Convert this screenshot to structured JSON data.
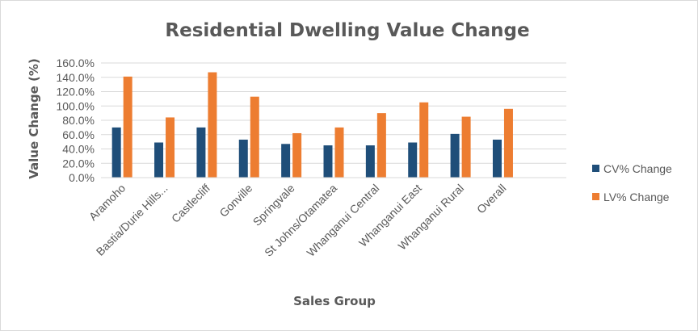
{
  "chart_data": {
    "type": "bar",
    "title": "Residential Dwelling Value Change",
    "xlabel": "Sales Group",
    "ylabel": "Value Change (%)",
    "ylim": [
      0,
      160
    ],
    "yticks": [
      "0.0%",
      "20.0%",
      "40.0%",
      "60.0%",
      "80.0%",
      "100.0%",
      "120.0%",
      "140.0%",
      "160.0%"
    ],
    "categories": [
      "Aramoho",
      "Bastia/Durie Hills...",
      "Castlecliff",
      "Gonville",
      "Springvale",
      "St Johns/Otamatea",
      "Whanganui Central",
      "Whanganui East",
      "Whanganui Rural",
      "Overall"
    ],
    "series": [
      {
        "name": "CV% Change",
        "color": "#1F4E79",
        "values": [
          70,
          49,
          70,
          53,
          47,
          45,
          45,
          49,
          61,
          53
        ]
      },
      {
        "name": "LV% Change",
        "color": "#ED7D31",
        "values": [
          141,
          84,
          147,
          113,
          62,
          70,
          90,
          105,
          85,
          96
        ]
      }
    ],
    "grid": true,
    "legend_position": "right"
  }
}
